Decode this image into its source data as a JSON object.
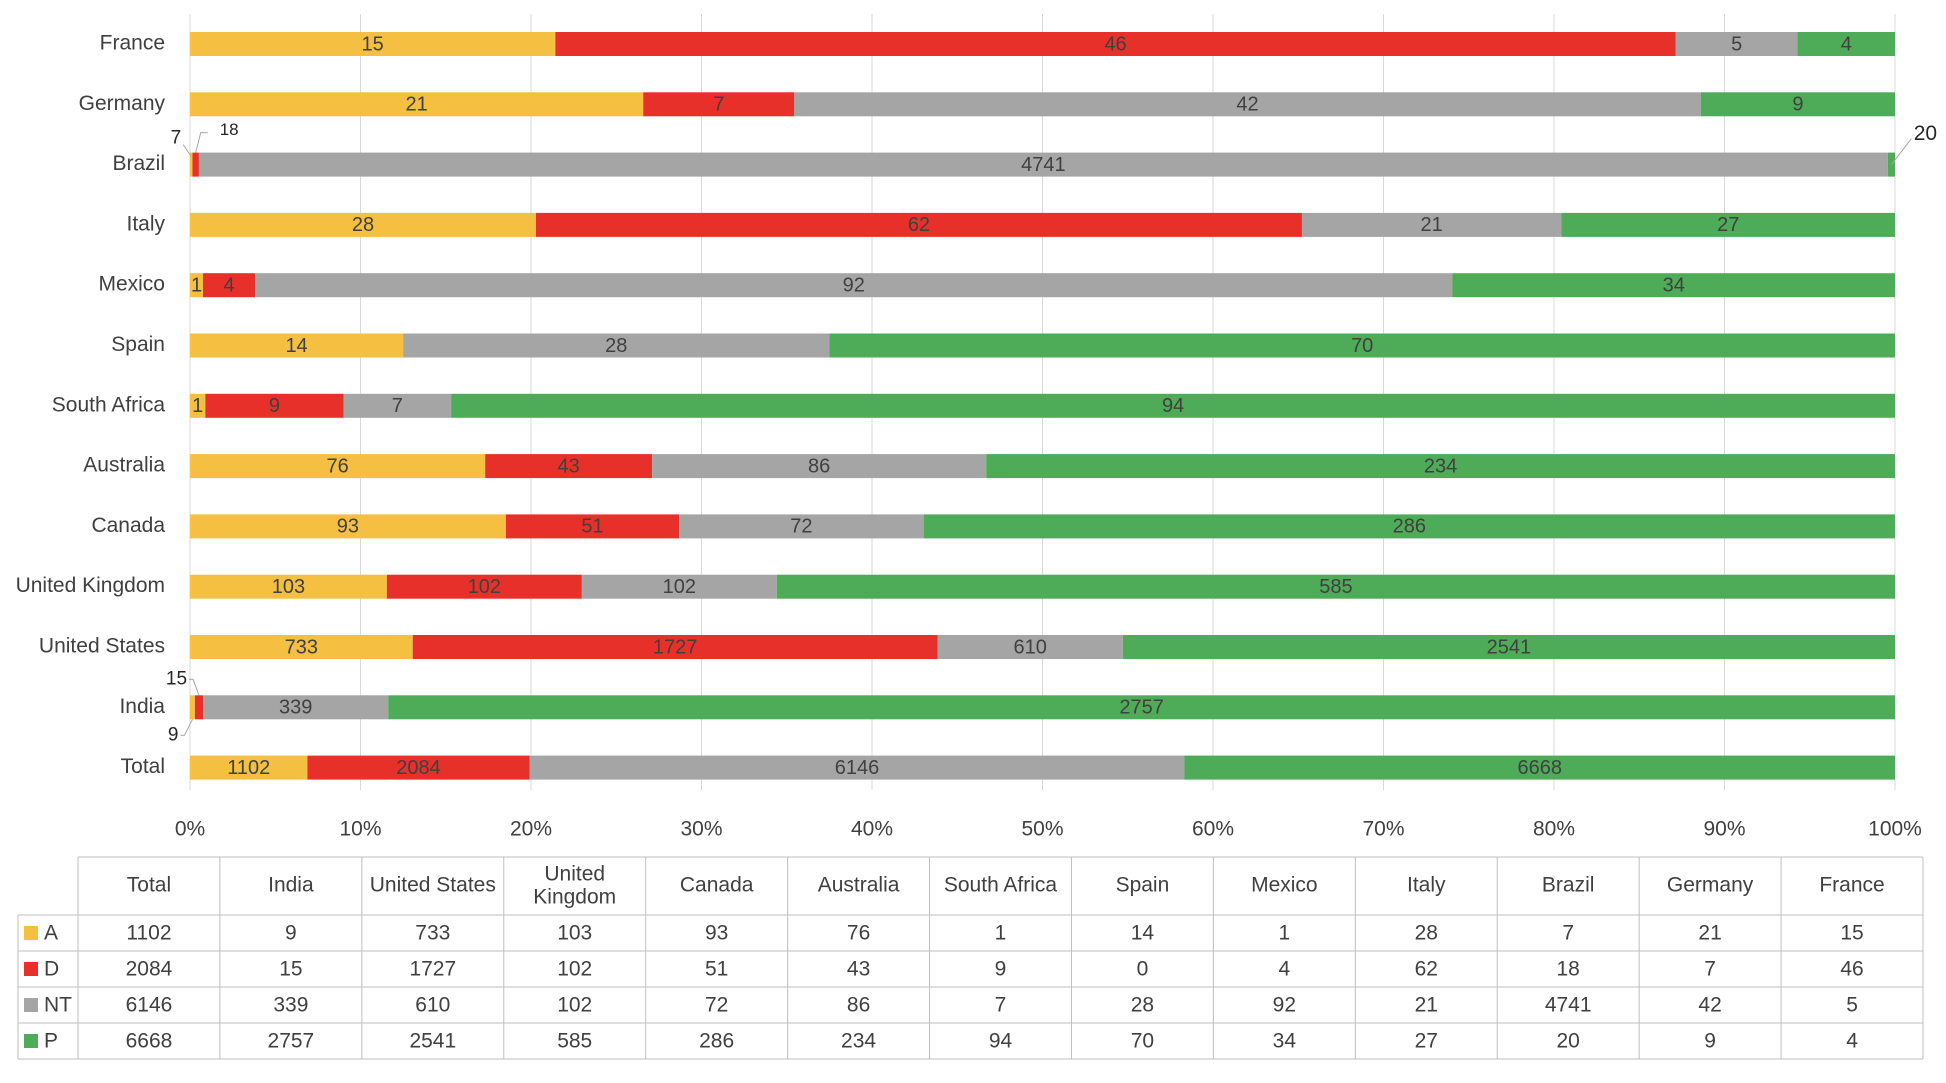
{
  "chart_data": {
    "type": "bar",
    "orientation": "horizontal",
    "stacking": "percent",
    "categories": [
      "France",
      "Germany",
      "Brazil",
      "Italy",
      "Mexico",
      "Spain",
      "South Africa",
      "Australia",
      "Canada",
      "United Kingdom",
      "United States",
      "India",
      "Total"
    ],
    "series": [
      {
        "name": "A",
        "color": "#f5bf42",
        "values": [
          15,
          21,
          7,
          28,
          1,
          14,
          1,
          76,
          93,
          103,
          733,
          9,
          1102
        ]
      },
      {
        "name": "D",
        "color": "#e8302a",
        "values": [
          46,
          7,
          18,
          62,
          4,
          0,
          9,
          43,
          51,
          102,
          1727,
          15,
          2084
        ]
      },
      {
        "name": "NT",
        "color": "#a5a5a5",
        "values": [
          5,
          42,
          4741,
          21,
          92,
          28,
          7,
          86,
          72,
          102,
          610,
          339,
          6146
        ]
      },
      {
        "name": "P",
        "color": "#4eab57",
        "values": [
          4,
          9,
          20,
          27,
          34,
          70,
          94,
          234,
          286,
          585,
          2541,
          2757,
          6668
        ]
      }
    ],
    "x_ticks": [
      "0%",
      "10%",
      "20%",
      "30%",
      "40%",
      "50%",
      "60%",
      "70%",
      "80%",
      "90%",
      "100%"
    ],
    "xlim": [
      0,
      100
    ],
    "grid": "vertical",
    "title": "",
    "xlabel": "",
    "ylabel": "",
    "data_table": {
      "columns": [
        "Total",
        "India",
        "United States",
        "United Kingdom",
        "Canada",
        "Australia",
        "South Africa",
        "Spain",
        "Mexico",
        "Italy",
        "Brazil",
        "Germany",
        "France"
      ],
      "rows": [
        {
          "name": "A",
          "values": [
            1102,
            9,
            733,
            103,
            93,
            76,
            1,
            14,
            1,
            28,
            7,
            21,
            15
          ]
        },
        {
          "name": "D",
          "values": [
            2084,
            15,
            1727,
            102,
            51,
            43,
            9,
            0,
            4,
            62,
            18,
            7,
            46
          ]
        },
        {
          "name": "NT",
          "values": [
            6146,
            339,
            610,
            102,
            72,
            86,
            7,
            28,
            92,
            21,
            4741,
            42,
            5
          ]
        },
        {
          "name": "P",
          "values": [
            6668,
            2757,
            2541,
            585,
            286,
            234,
            94,
            70,
            34,
            27,
            20,
            9,
            4
          ]
        }
      ]
    }
  }
}
